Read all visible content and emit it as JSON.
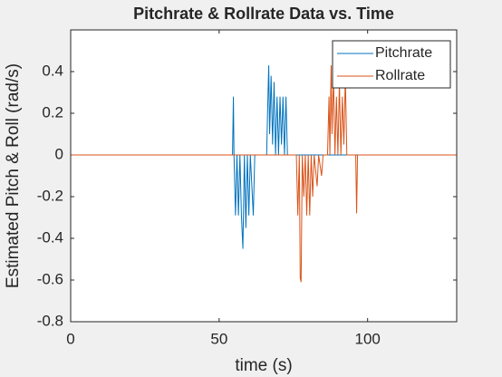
{
  "chart_data": {
    "type": "line",
    "title": "Pitchrate & Rollrate Data vs. Time",
    "xlabel": "time (s)",
    "ylabel": "Estimated Pitch & Roll (rad/s)",
    "xlim": [
      0,
      130
    ],
    "xticks": [
      0,
      50,
      100
    ],
    "ylim": [
      -0.8,
      0.6
    ],
    "yticks": [
      0.4,
      0.2,
      0,
      -0.2,
      -0.4,
      -0.6,
      -0.8
    ],
    "legend": "northeast",
    "series": [
      {
        "name": "Pitchrate",
        "color": "#0072bd",
        "x": [
          0,
          54.5,
          54.8,
          55,
          55.5,
          56,
          56.5,
          57,
          57.5,
          58,
          58.5,
          59,
          59.5,
          60,
          60.5,
          61.5,
          62,
          66,
          66.3,
          66.7,
          67,
          67.5,
          68,
          68.5,
          69,
          69.5,
          70,
          70.5,
          71,
          71.5,
          72,
          72.5,
          73,
          130
        ],
        "values": [
          0,
          0,
          0.28,
          0,
          -0.29,
          0,
          -0.29,
          0,
          -0.29,
          -0.45,
          0,
          -0.35,
          0,
          -0.29,
          0,
          -0.29,
          0,
          0,
          0.2,
          0.43,
          0.1,
          0.38,
          0.05,
          0.35,
          0,
          0.28,
          0,
          0.28,
          0.05,
          0.28,
          0,
          0.28,
          0,
          0
        ]
      },
      {
        "name": "Rollrate",
        "color": "#d95319",
        "x": [
          0,
          76,
          76.5,
          77,
          77.3,
          77.6,
          78,
          78.5,
          79,
          79.5,
          80,
          80.5,
          81,
          81.5,
          82,
          83,
          83.5,
          84.5,
          85,
          86.5,
          87,
          87.3,
          87.7,
          88,
          88.5,
          89,
          89.5,
          90,
          90.5,
          91,
          91.5,
          92,
          92.5,
          93,
          96,
          96.3,
          96.6,
          130
        ],
        "values": [
          0,
          0,
          -0.29,
          0,
          -0.59,
          -0.61,
          0,
          -0.2,
          0,
          -0.29,
          0,
          -0.29,
          0,
          -0.2,
          0,
          -0.15,
          0,
          -0.1,
          0,
          0,
          0.28,
          0,
          0.43,
          0.1,
          0.38,
          0,
          0.28,
          0,
          0.35,
          0,
          0.28,
          0.05,
          0.38,
          0,
          0,
          -0.28,
          0,
          0
        ]
      }
    ]
  }
}
